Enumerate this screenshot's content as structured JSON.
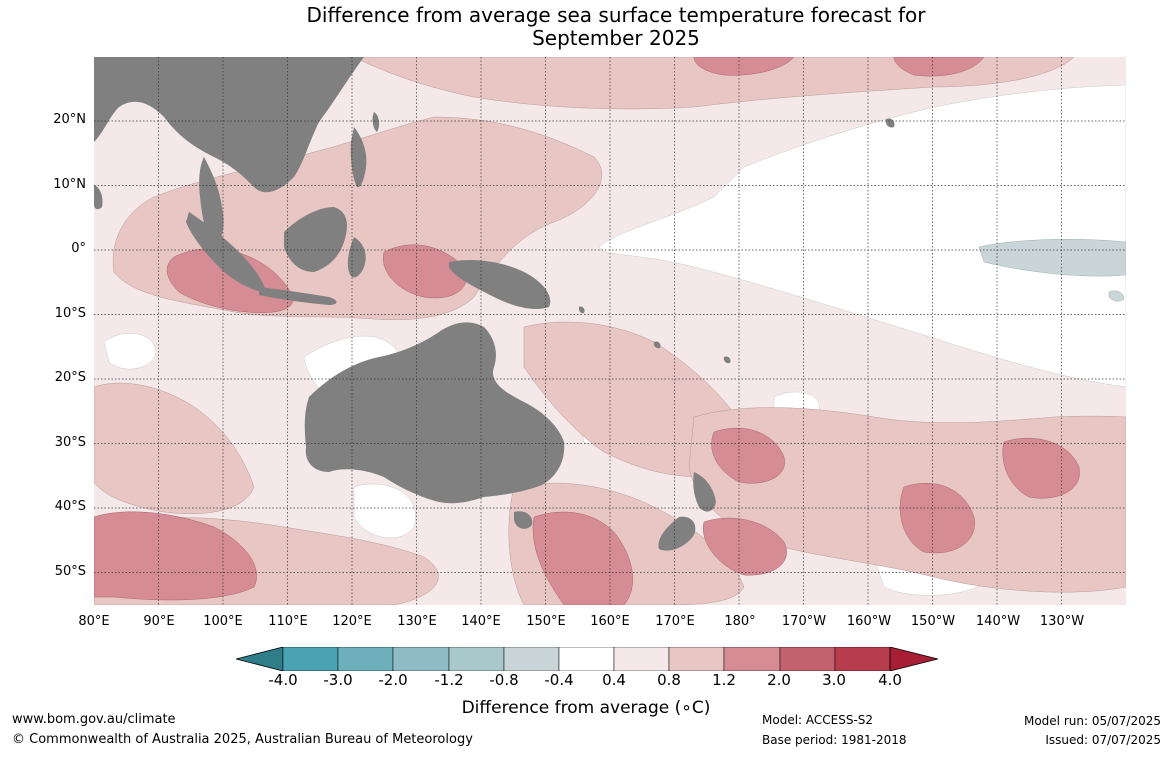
{
  "title_line1": "Difference from average sea surface temperature forecast for",
  "title_line2": "September 2025",
  "lat_labels": [
    "20°N",
    "10°N",
    "0°",
    "10°S",
    "20°S",
    "30°S",
    "40°S",
    "50°S"
  ],
  "lon_labels": [
    "80°E",
    "90°E",
    "100°E",
    "110°E",
    "120°E",
    "130°E",
    "140°E",
    "150°E",
    "160°E",
    "170°E",
    "180°",
    "170°W",
    "160°W",
    "150°W",
    "140°W",
    "130°W"
  ],
  "colorbar": {
    "ticks": [
      "-4.0",
      "-3.0",
      "-2.0",
      "-1.2",
      "-0.8",
      "-0.4",
      "0.4",
      "0.8",
      "1.2",
      "2.0",
      "3.0",
      "4.0"
    ],
    "colors": [
      "#2e7d88",
      "#4aa3b2",
      "#6eb0bc",
      "#8fbcc4",
      "#a8c8cc",
      "#c9d5d7",
      "#ffffff",
      "#f4e8e8",
      "#e8c6c4",
      "#d68c95",
      "#c4616e",
      "#b83d4c",
      "#a81e35"
    ],
    "label": "Difference from average (∘C)"
  },
  "map_colors": {
    "land": "#808080",
    "ocean_base": "#f4e8e8"
  },
  "footer": {
    "website": "www.bom.gov.au/climate",
    "copyright": "© Commonwealth of Australia 2025, Australian Bureau of Meteorology",
    "model": "Model: ACCESS-S2",
    "base_period": "Base period: 1981-2018",
    "model_run": "Model run: 05/07/2025",
    "issued": "Issued: 07/07/2025"
  }
}
